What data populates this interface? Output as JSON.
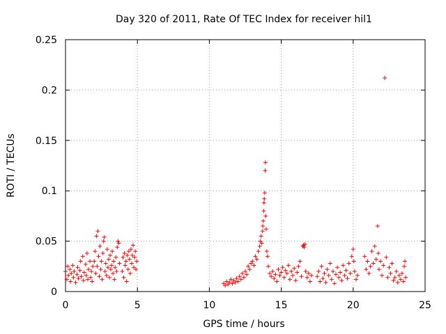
{
  "chart_data": {
    "type": "scatter",
    "title": "Day 320 of 2011, Rate Of TEC Index for receiver hil1",
    "xlabel": "GPS time / hours",
    "ylabel": "ROTI / TECUs",
    "xlim": [
      0,
      25
    ],
    "ylim": [
      0,
      0.25
    ],
    "xticks": [
      0,
      5,
      10,
      15,
      20,
      25
    ],
    "xtick_labels": [
      "0",
      "5",
      "10",
      "15",
      "20",
      "25"
    ],
    "yticks": [
      0,
      0.05,
      0.1,
      0.15,
      0.2,
      0.25
    ],
    "ytick_labels": [
      "0",
      "0.05",
      "0.1",
      "0.15",
      "0.2",
      "0.25"
    ],
    "grid": true,
    "marker": "+",
    "color": "#ff0000",
    "series": [
      {
        "name": "ROTI",
        "points": [
          [
            0.0,
            0.02
          ],
          [
            0.1,
            0.012
          ],
          [
            0.15,
            0.025
          ],
          [
            0.2,
            0.016
          ],
          [
            0.3,
            0.022
          ],
          [
            0.35,
            0.01
          ],
          [
            0.4,
            0.018
          ],
          [
            0.5,
            0.026
          ],
          [
            0.55,
            0.014
          ],
          [
            0.6,
            0.02
          ],
          [
            0.7,
            0.009
          ],
          [
            0.8,
            0.017
          ],
          [
            0.85,
            0.024
          ],
          [
            0.9,
            0.013
          ],
          [
            1.0,
            0.021
          ],
          [
            1.05,
            0.03
          ],
          [
            1.1,
            0.015
          ],
          [
            1.2,
            0.035
          ],
          [
            1.25,
            0.011
          ],
          [
            1.3,
            0.019
          ],
          [
            1.4,
            0.027
          ],
          [
            1.45,
            0.016
          ],
          [
            1.5,
            0.038
          ],
          [
            1.55,
            0.012
          ],
          [
            1.6,
            0.022
          ],
          [
            1.7,
            0.03
          ],
          [
            1.75,
            0.014
          ],
          [
            1.8,
            0.02
          ],
          [
            1.85,
            0.01
          ],
          [
            1.9,
            0.025
          ],
          [
            2.0,
            0.03
          ],
          [
            2.05,
            0.04
          ],
          [
            2.1,
            0.018
          ],
          [
            2.15,
            0.055
          ],
          [
            2.2,
            0.025
          ],
          [
            2.25,
            0.06
          ],
          [
            2.3,
            0.035
          ],
          [
            2.35,
            0.015
          ],
          [
            2.4,
            0.045
          ],
          [
            2.45,
            0.022
          ],
          [
            2.5,
            0.03
          ],
          [
            2.55,
            0.012
          ],
          [
            2.6,
            0.038
          ],
          [
            2.65,
            0.05
          ],
          [
            2.7,
            0.054
          ],
          [
            2.75,
            0.02
          ],
          [
            2.8,
            0.028
          ],
          [
            2.85,
            0.016
          ],
          [
            2.9,
            0.042
          ],
          [
            2.95,
            0.024
          ],
          [
            3.0,
            0.032
          ],
          [
            3.05,
            0.014
          ],
          [
            3.1,
            0.036
          ],
          [
            3.15,
            0.022
          ],
          [
            3.2,
            0.026
          ],
          [
            3.25,
            0.04
          ],
          [
            3.3,
            0.018
          ],
          [
            3.35,
            0.03
          ],
          [
            3.4,
            0.012
          ],
          [
            3.45,
            0.024
          ],
          [
            3.5,
            0.034
          ],
          [
            3.55,
            0.02
          ],
          [
            3.6,
            0.044
          ],
          [
            3.65,
            0.05
          ],
          [
            3.7,
            0.048
          ],
          [
            3.75,
            0.028
          ],
          [
            3.95,
            0.02
          ],
          [
            4.0,
            0.034
          ],
          [
            4.05,
            0.014
          ],
          [
            4.1,
            0.038
          ],
          [
            4.15,
            0.026
          ],
          [
            4.2,
            0.03
          ],
          [
            4.25,
            0.01
          ],
          [
            4.3,
            0.036
          ],
          [
            4.35,
            0.022
          ],
          [
            4.4,
            0.04
          ],
          [
            4.45,
            0.032
          ],
          [
            4.5,
            0.018
          ],
          [
            4.55,
            0.042
          ],
          [
            4.6,
            0.028
          ],
          [
            4.65,
            0.036
          ],
          [
            4.7,
            0.046
          ],
          [
            4.75,
            0.024
          ],
          [
            4.8,
            0.034
          ],
          [
            4.85,
            0.04
          ],
          [
            4.9,
            0.022
          ],
          [
            4.95,
            0.03
          ],
          [
            11.0,
            0.008
          ],
          [
            11.1,
            0.006
          ],
          [
            11.2,
            0.01
          ],
          [
            11.3,
            0.007
          ],
          [
            11.4,
            0.009
          ],
          [
            11.5,
            0.012
          ],
          [
            11.6,
            0.008
          ],
          [
            11.7,
            0.011
          ],
          [
            11.8,
            0.009
          ],
          [
            11.9,
            0.013
          ],
          [
            12.0,
            0.01
          ],
          [
            12.1,
            0.015
          ],
          [
            12.2,
            0.012
          ],
          [
            12.3,
            0.018
          ],
          [
            12.4,
            0.014
          ],
          [
            12.5,
            0.02
          ],
          [
            12.6,
            0.017
          ],
          [
            12.7,
            0.025
          ],
          [
            12.8,
            0.022
          ],
          [
            12.9,
            0.028
          ],
          [
            13.0,
            0.03
          ],
          [
            13.1,
            0.026
          ],
          [
            13.2,
            0.035
          ],
          [
            13.3,
            0.032
          ],
          [
            13.4,
            0.04
          ],
          [
            13.5,
            0.045
          ],
          [
            13.55,
            0.05
          ],
          [
            13.6,
            0.055
          ],
          [
            13.65,
            0.048
          ],
          [
            13.7,
            0.06
          ],
          [
            13.72,
            0.065
          ],
          [
            13.75,
            0.07
          ],
          [
            13.78,
            0.08
          ],
          [
            13.8,
            0.088
          ],
          [
            13.82,
            0.092
          ],
          [
            13.85,
            0.098
          ],
          [
            13.88,
            0.12
          ],
          [
            13.9,
            0.128
          ],
          [
            13.92,
            0.075
          ],
          [
            13.95,
            0.062
          ],
          [
            14.0,
            0.04
          ],
          [
            14.05,
            0.035
          ],
          [
            14.1,
            0.025
          ],
          [
            14.2,
            0.018
          ],
          [
            14.3,
            0.015
          ],
          [
            14.4,
            0.02
          ],
          [
            14.5,
            0.013
          ],
          [
            14.6,
            0.017
          ],
          [
            14.7,
            0.01
          ],
          [
            14.8,
            0.022
          ],
          [
            14.9,
            0.016
          ],
          [
            15.0,
            0.019
          ],
          [
            15.1,
            0.024
          ],
          [
            15.2,
            0.014
          ],
          [
            15.3,
            0.021
          ],
          [
            15.4,
            0.018
          ],
          [
            15.5,
            0.026
          ],
          [
            15.6,
            0.012
          ],
          [
            15.7,
            0.02
          ],
          [
            15.8,
            0.016
          ],
          [
            15.9,
            0.023
          ],
          [
            16.0,
            0.011
          ],
          [
            16.1,
            0.019
          ],
          [
            16.2,
            0.025
          ],
          [
            16.3,
            0.03
          ],
          [
            16.4,
            0.015
          ],
          [
            16.5,
            0.045
          ],
          [
            16.55,
            0.046
          ],
          [
            16.6,
            0.044
          ],
          [
            16.65,
            0.047
          ],
          [
            16.7,
            0.02
          ],
          [
            16.8,
            0.014
          ],
          [
            16.9,
            0.018
          ],
          [
            17.0,
            0.01
          ],
          [
            17.1,
            0.016
          ],
          [
            17.5,
            0.015
          ],
          [
            17.6,
            0.02
          ],
          [
            17.7,
            0.01
          ],
          [
            17.8,
            0.025
          ],
          [
            17.9,
            0.013
          ],
          [
            18.0,
            0.018
          ],
          [
            18.1,
            0.009
          ],
          [
            18.2,
            0.022
          ],
          [
            18.3,
            0.016
          ],
          [
            18.4,
            0.028
          ],
          [
            18.5,
            0.012
          ],
          [
            18.6,
            0.02
          ],
          [
            18.7,
            0.008
          ],
          [
            18.8,
            0.017
          ],
          [
            18.9,
            0.024
          ],
          [
            19.0,
            0.014
          ],
          [
            19.1,
            0.019
          ],
          [
            19.2,
            0.011
          ],
          [
            19.3,
            0.026
          ],
          [
            19.4,
            0.016
          ],
          [
            19.5,
            0.021
          ],
          [
            19.6,
            0.013
          ],
          [
            19.7,
            0.028
          ],
          [
            19.8,
            0.018
          ],
          [
            19.9,
            0.035
          ],
          [
            20.0,
            0.042
          ],
          [
            20.05,
            0.03
          ],
          [
            20.1,
            0.02
          ],
          [
            20.2,
            0.012
          ],
          [
            20.3,
            0.016
          ],
          [
            20.8,
            0.035
          ],
          [
            20.9,
            0.022
          ],
          [
            21.0,
            0.03
          ],
          [
            21.1,
            0.018
          ],
          [
            21.2,
            0.025
          ],
          [
            21.3,
            0.04
          ],
          [
            21.4,
            0.028
          ],
          [
            21.5,
            0.045
          ],
          [
            21.6,
            0.032
          ],
          [
            21.7,
            0.065
          ],
          [
            21.75,
            0.038
          ],
          [
            21.8,
            0.022
          ],
          [
            21.9,
            0.03
          ],
          [
            22.0,
            0.016
          ],
          [
            22.1,
            0.026
          ],
          [
            22.2,
            0.212
          ],
          [
            22.3,
            0.034
          ],
          [
            22.4,
            0.014
          ],
          [
            22.5,
            0.024
          ],
          [
            22.6,
            0.018
          ],
          [
            22.7,
            0.028
          ],
          [
            22.8,
            0.011
          ],
          [
            22.9,
            0.014
          ],
          [
            23.0,
            0.02
          ],
          [
            23.1,
            0.009
          ],
          [
            23.2,
            0.016
          ],
          [
            23.3,
            0.012
          ],
          [
            23.4,
            0.018
          ],
          [
            23.5,
            0.01
          ],
          [
            23.55,
            0.025
          ],
          [
            23.6,
            0.03
          ],
          [
            23.65,
            0.014
          ]
        ]
      }
    ]
  }
}
